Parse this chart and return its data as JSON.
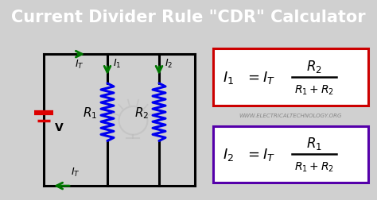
{
  "title": "Current Divider Rule \"CDR\" Calculator",
  "title_fontsize": 15,
  "title_bg": "#000000",
  "title_color": "#ffffff",
  "bg_color": "#d0d0d0",
  "circuit_wire_color": "#000000",
  "resistor_color": "#0000ee",
  "battery_color": "#dd0000",
  "arrow_color": "#007700",
  "formula1_box_color": "#cc0000",
  "formula2_box_color": "#5500aa",
  "watermark": "WWW.ELECTRICALTECHNOLOGY.ORG",
  "watermark_color": "#888888"
}
